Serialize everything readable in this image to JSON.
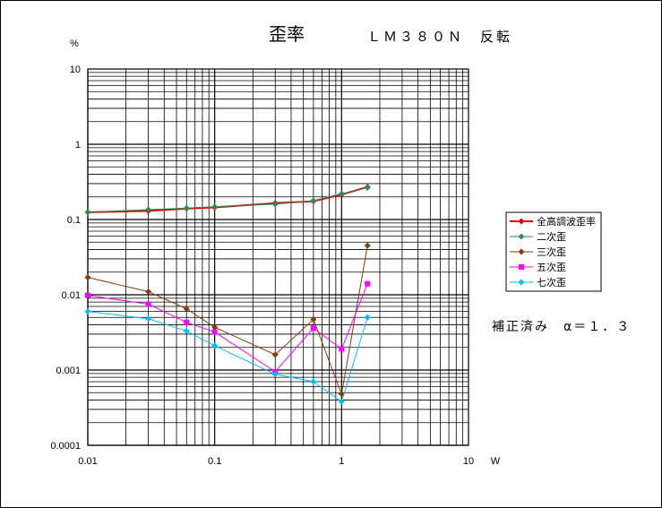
{
  "chart_data": {
    "type": "line",
    "title": "歪率",
    "subtitle": "ＬＭ３８０Ｎ　反転",
    "xlabel": "W",
    "ylabel": "%",
    "xscale": "log",
    "yscale": "log",
    "xlim": [
      0.01,
      10
    ],
    "ylim": [
      0.0001,
      10
    ],
    "x_tick_labels": [
      "0.01",
      "0.1",
      "1",
      "10"
    ],
    "y_tick_labels": [
      "10",
      "1",
      "0.1",
      "0.01",
      "0.001",
      "0.0001"
    ],
    "grid": true,
    "legend_position": "right",
    "annotation": "補正済み　α＝１．３",
    "series": [
      {
        "name": "全高調波歪率",
        "color": "#e00000",
        "marker": "diamond",
        "x": [
          0.01,
          0.03,
          0.06,
          0.1,
          0.3,
          0.6,
          1.0,
          1.6
        ],
        "y": [
          0.125,
          0.13,
          0.14,
          0.145,
          0.165,
          0.175,
          0.215,
          0.27
        ]
      },
      {
        "name": "二次歪",
        "color": "#2e8b57",
        "marker": "diamond",
        "x": [
          0.01,
          0.03,
          0.06,
          0.1,
          0.3,
          0.6,
          1.0,
          1.6
        ],
        "y": [
          0.125,
          0.135,
          0.142,
          0.148,
          0.16,
          0.178,
          0.22,
          0.265
        ]
      },
      {
        "name": "三次歪",
        "color": "#8b3a0f",
        "marker": "diamond",
        "x": [
          0.01,
          0.03,
          0.06,
          0.1,
          0.3,
          0.6,
          1.0,
          1.6
        ],
        "y": [
          0.017,
          0.011,
          0.0065,
          0.0037,
          0.0016,
          0.0047,
          0.00048,
          0.045
        ]
      },
      {
        "name": "五次歪",
        "color": "#ff00ff",
        "marker": "square",
        "x": [
          0.01,
          0.03,
          0.06,
          0.1,
          0.3,
          0.6,
          1.0,
          1.6
        ],
        "y": [
          0.0098,
          0.0075,
          0.0043,
          0.0032,
          0.00095,
          0.0036,
          0.0019,
          0.014
        ]
      },
      {
        "name": "七次歪",
        "color": "#00bfff",
        "marker": "diamond",
        "x": [
          0.01,
          0.03,
          0.06,
          0.1,
          0.3,
          0.6,
          1.0,
          1.6
        ],
        "y": [
          0.006,
          0.0048,
          0.0033,
          0.0021,
          0.00088,
          0.0007,
          0.00038,
          0.005
        ]
      }
    ]
  }
}
